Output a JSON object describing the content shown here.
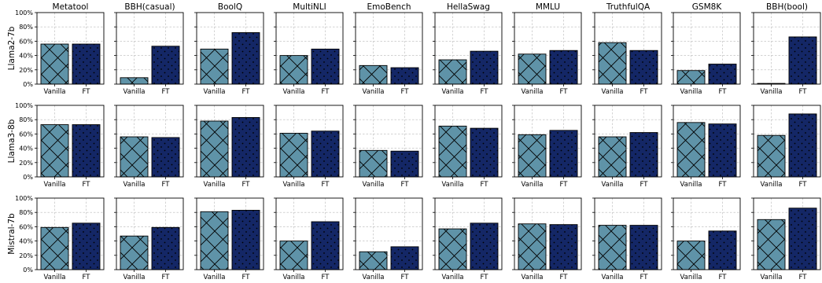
{
  "chart_data": {
    "type": "bar",
    "categories": [
      "Vanilla",
      "FT"
    ],
    "ylim": [
      0,
      100
    ],
    "yticks": [
      "0%",
      "20%",
      "40%",
      "60%",
      "80%",
      "100%"
    ],
    "grid": true,
    "colors": {
      "Vanilla": "#5f93a8",
      "FT": "#142766"
    },
    "hatches": {
      "Vanilla": "x",
      "FT": "dots"
    },
    "columns": [
      "Metatool",
      "BBH(casual)",
      "BoolQ",
      "MultiNLI",
      "EmoBench",
      "HellaSwag",
      "MMLU",
      "TruthfulQA",
      "GSM8K",
      "BBH(bool)"
    ],
    "rows": [
      {
        "name": "Llama2-7b",
        "values": [
          [
            56,
            56
          ],
          [
            9,
            53
          ],
          [
            49,
            72
          ],
          [
            40,
            49
          ],
          [
            26,
            23
          ],
          [
            34,
            46
          ],
          [
            42,
            47
          ],
          [
            58,
            47
          ],
          [
            19,
            28
          ],
          [
            1,
            66
          ]
        ]
      },
      {
        "name": "Llama3-8b",
        "values": [
          [
            73,
            73
          ],
          [
            56,
            55
          ],
          [
            78,
            83
          ],
          [
            61,
            64
          ],
          [
            37,
            36
          ],
          [
            71,
            68
          ],
          [
            59,
            65
          ],
          [
            56,
            62
          ],
          [
            76,
            74
          ],
          [
            58,
            88
          ]
        ]
      },
      {
        "name": "Mistral-7b",
        "values": [
          [
            59,
            65
          ],
          [
            47,
            59
          ],
          [
            81,
            83
          ],
          [
            40,
            67
          ],
          [
            25,
            32
          ],
          [
            57,
            65
          ],
          [
            64,
            63
          ],
          [
            62,
            62
          ],
          [
            40,
            54
          ],
          [
            70,
            86
          ]
        ]
      }
    ]
  }
}
